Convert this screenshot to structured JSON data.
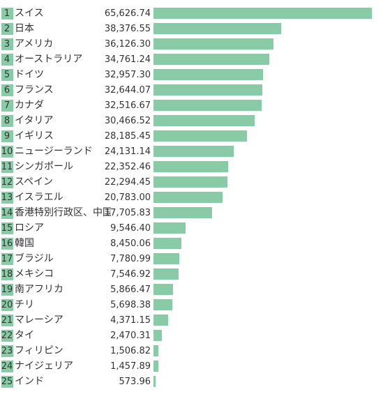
{
  "colors": {
    "bar": "#88cba6",
    "rank_box": "#88cba6",
    "text": "#333333"
  },
  "chart_data": {
    "type": "bar",
    "orientation": "horizontal",
    "title": "",
    "xlabel": "",
    "ylabel": "",
    "xlim": [
      0,
      65626.74
    ],
    "grid": false,
    "legend": "none",
    "ranks": [
      "1",
      "2",
      "3",
      "4",
      "5",
      "6",
      "7",
      "8",
      "9",
      "10",
      "11",
      "12",
      "13",
      "14",
      "15",
      "16",
      "17",
      "18",
      "19",
      "20",
      "21",
      "22",
      "23",
      "24",
      "25"
    ],
    "categories": [
      "スイス",
      "日本",
      "アメリカ",
      "オーストラリア",
      "ドイツ",
      "フランス",
      "カナダ",
      "イタリア",
      "イギリス",
      "ニュージーランド",
      "シンガポール",
      "スペイン",
      "イスラエル",
      "香港特別行政区、中国",
      "ロシア",
      "韓国",
      "ブラジル",
      "メキシコ",
      "南アフリカ",
      "チリ",
      "マレーシア",
      "タイ",
      "フィリピン",
      "ナイジェリア",
      "インド"
    ],
    "values": [
      65626.74,
      38376.55,
      36126.3,
      34761.24,
      32957.3,
      32644.07,
      32516.67,
      30466.52,
      28185.45,
      24131.14,
      22352.46,
      22294.45,
      20783.0,
      17705.83,
      9546.4,
      8450.06,
      7780.99,
      7546.92,
      5866.47,
      5698.38,
      4371.15,
      2470.31,
      1506.82,
      1457.89,
      573.96
    ],
    "value_labels": [
      "65,626.74",
      "38,376.55",
      "36,126.30",
      "34,761.24",
      "32,957.30",
      "32,644.07",
      "32,516.67",
      "30,466.52",
      "28,185.45",
      "24,131.14",
      "22,352.46",
      "22,294.45",
      "20,783.00",
      "17,705.83",
      "9,546.40",
      "8,450.06",
      "7,780.99",
      "7,546.92",
      "5,866.47",
      "5,698.38",
      "4,371.15",
      "2,470.31",
      "1,506.82",
      "1,457.89",
      "573.96"
    ]
  }
}
